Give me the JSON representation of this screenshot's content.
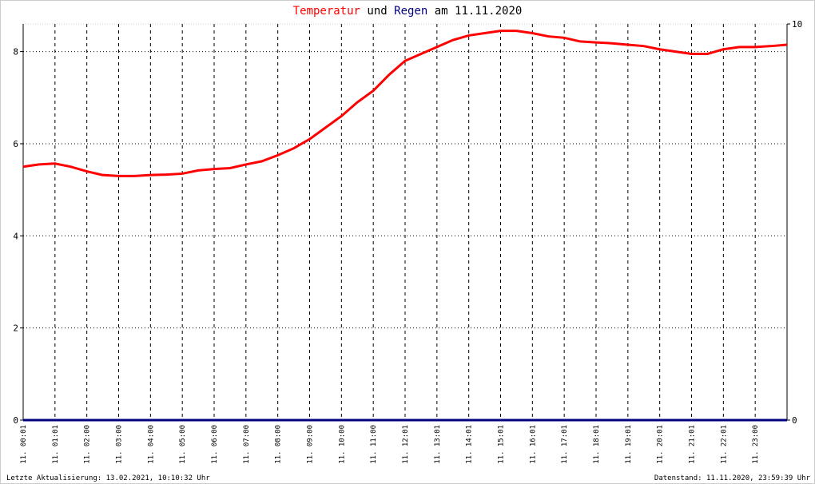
{
  "chart_data": {
    "type": "line",
    "title": [
      "Temperatur",
      "und",
      "Regen",
      "am 11.11.2020"
    ],
    "x": [
      0,
      0.5,
      1,
      1.5,
      2,
      2.5,
      3,
      3.5,
      4,
      4.5,
      5,
      5.5,
      6,
      6.5,
      7,
      7.5,
      8,
      8.5,
      9,
      9.5,
      10,
      10.5,
      11,
      11.5,
      12,
      12.5,
      13,
      13.5,
      14,
      14.5,
      15,
      15.5,
      16,
      16.5,
      17,
      17.5,
      18,
      18.5,
      19,
      19.5,
      20,
      20.5,
      21,
      21.5,
      22,
      22.5,
      23,
      23.5,
      24
    ],
    "series": [
      {
        "name": "Temperatur",
        "color": "#ff0000",
        "values": [
          5.5,
          5.55,
          5.57,
          5.5,
          5.4,
          5.32,
          5.3,
          5.3,
          5.32,
          5.33,
          5.35,
          5.42,
          5.45,
          5.47,
          5.55,
          5.62,
          5.75,
          5.9,
          6.1,
          6.35,
          6.6,
          6.9,
          7.15,
          7.5,
          7.8,
          7.95,
          8.1,
          8.25,
          8.35,
          8.4,
          8.45,
          8.45,
          8.4,
          8.33,
          8.3,
          8.22,
          8.2,
          8.18,
          8.15,
          8.12,
          8.05,
          8,
          7.95,
          7.95,
          8.05,
          8.1,
          8.1,
          8.12,
          8.15
        ]
      },
      {
        "name": "Regen",
        "color": "#000080",
        "axis": "y2",
        "values": [
          0,
          0,
          0,
          0,
          0,
          0,
          0,
          0,
          0,
          0,
          0,
          0,
          0,
          0,
          0,
          0,
          0,
          0,
          0,
          0,
          0,
          0,
          0,
          0,
          0,
          0,
          0,
          0,
          0,
          0,
          0,
          0,
          0,
          0,
          0,
          0,
          0,
          0,
          0,
          0,
          0,
          0,
          0,
          0,
          0,
          0,
          0,
          0,
          0
        ]
      }
    ],
    "xlim": [
      0,
      24
    ],
    "xticks": [
      {
        "value": 0,
        "label": "11. 00:01"
      },
      {
        "value": 1,
        "label": "11. 01:01"
      },
      {
        "value": 2,
        "label": "11. 02:00"
      },
      {
        "value": 3,
        "label": "11. 03:00"
      },
      {
        "value": 4,
        "label": "11. 04:00"
      },
      {
        "value": 5,
        "label": "11. 05:00"
      },
      {
        "value": 6,
        "label": "11. 06:00"
      },
      {
        "value": 7,
        "label": "11. 07:00"
      },
      {
        "value": 8,
        "label": "11. 08:00"
      },
      {
        "value": 9,
        "label": "11. 09:00"
      },
      {
        "value": 10,
        "label": "11. 10:00"
      },
      {
        "value": 11,
        "label": "11. 11:00"
      },
      {
        "value": 12,
        "label": "11. 12:01"
      },
      {
        "value": 13,
        "label": "11. 13:01"
      },
      {
        "value": 14,
        "label": "11. 14:01"
      },
      {
        "value": 15,
        "label": "11. 15:01"
      },
      {
        "value": 16,
        "label": "11. 16:01"
      },
      {
        "value": 17,
        "label": "11. 17:01"
      },
      {
        "value": 18,
        "label": "11. 18:01"
      },
      {
        "value": 19,
        "label": "11. 19:01"
      },
      {
        "value": 20,
        "label": "11. 20:01"
      },
      {
        "value": 21,
        "label": "11. 21:01"
      },
      {
        "value": 22,
        "label": "11. 22:01"
      },
      {
        "value": 23,
        "label": "11. 23:00"
      }
    ],
    "ylim": [
      0,
      8.6
    ],
    "yticks": [
      0,
      2,
      4,
      6,
      8
    ],
    "y2lim": [
      0,
      10
    ],
    "y2ticks": [
      0,
      10
    ],
    "grid": true,
    "footer_left": "Letzte Aktualisierung: 13.02.2021, 10:10:32 Uhr",
    "footer_right": "Datenstand: 11.11.2020, 23:59:39 Uhr"
  }
}
